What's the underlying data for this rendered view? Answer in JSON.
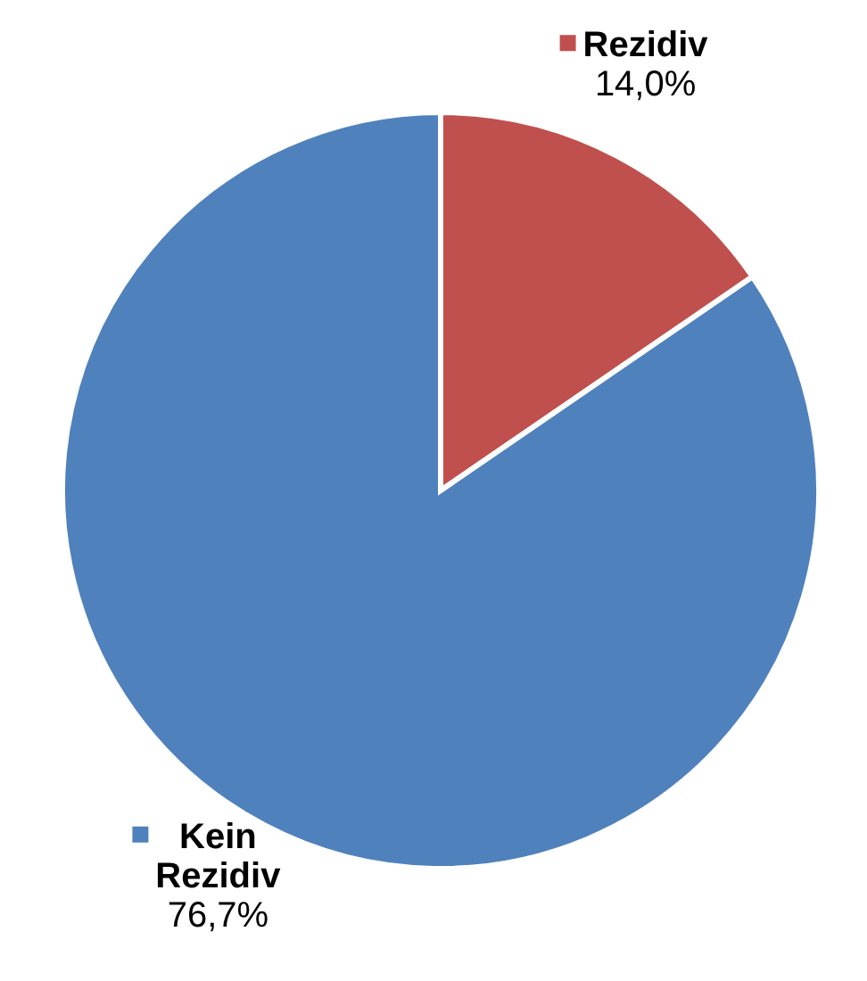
{
  "chart_data": {
    "type": "pie",
    "categories": [
      "Rezidiv",
      "Kein Rezidiv"
    ],
    "values": [
      14.0,
      76.7
    ],
    "colors": [
      "#c0504d",
      "#4f81bd"
    ],
    "value_labels": [
      "14,0%",
      "76,7%"
    ],
    "legend": "top right"
  }
}
